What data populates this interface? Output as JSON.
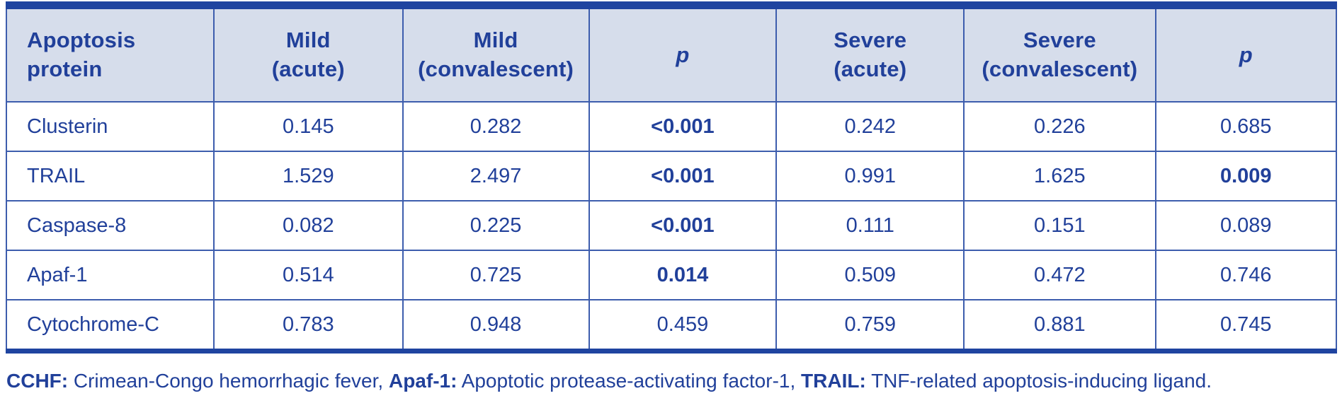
{
  "colors": {
    "accent_bar": "#1f44a0",
    "cell_border": "#3d5dad",
    "header_bg": "#d6ddeb",
    "text": "#21409a",
    "row_bg": "#ffffff"
  },
  "table": {
    "header": {
      "cols": [
        {
          "l1": "Apoptosis",
          "l2": "protein"
        },
        {
          "l1": "Mild",
          "l2": "(acute)"
        },
        {
          "l1": "Mild",
          "l2": "(convalescent)"
        },
        {
          "l1": "p"
        },
        {
          "l1": "Severe",
          "l2": "(acute)"
        },
        {
          "l1": "Severe",
          "l2": "(convalescent)"
        },
        {
          "l1": "p"
        }
      ]
    },
    "rows": [
      {
        "cells": [
          "Clusterin",
          "0.145",
          "0.282",
          "<0.001",
          "0.242",
          "0.226",
          "0.685"
        ],
        "bold": [
          false,
          false,
          false,
          true,
          false,
          false,
          false
        ]
      },
      {
        "cells": [
          "TRAIL",
          "1.529",
          "2.497",
          "<0.001",
          "0.991",
          "1.625",
          "0.009"
        ],
        "bold": [
          false,
          false,
          false,
          true,
          false,
          false,
          true
        ]
      },
      {
        "cells": [
          "Caspase-8",
          "0.082",
          "0.225",
          "<0.001",
          "0.111",
          "0.151",
          "0.089"
        ],
        "bold": [
          false,
          false,
          false,
          true,
          false,
          false,
          false
        ]
      },
      {
        "cells": [
          "Apaf-1",
          "0.514",
          "0.725",
          "0.014",
          "0.509",
          "0.472",
          "0.746"
        ],
        "bold": [
          false,
          false,
          false,
          true,
          false,
          false,
          false
        ]
      },
      {
        "cells": [
          "Cytochrome-C",
          "0.783",
          "0.948",
          "0.459",
          "0.759",
          "0.881",
          "0.745"
        ],
        "bold": [
          false,
          false,
          false,
          false,
          false,
          false,
          false
        ]
      }
    ]
  },
  "footnote": {
    "segments": [
      {
        "text": "CCHF:",
        "bold": true
      },
      {
        "text": " Crimean-Congo hemorrhagic fever, ",
        "bold": false
      },
      {
        "text": "Apaf-1:",
        "bold": true
      },
      {
        "text": " Apoptotic protease-activating factor-1, ",
        "bold": false
      },
      {
        "text": "TRAIL:",
        "bold": true
      },
      {
        "text": " TNF-related apoptosis-inducing ligand.",
        "bold": false
      }
    ]
  }
}
